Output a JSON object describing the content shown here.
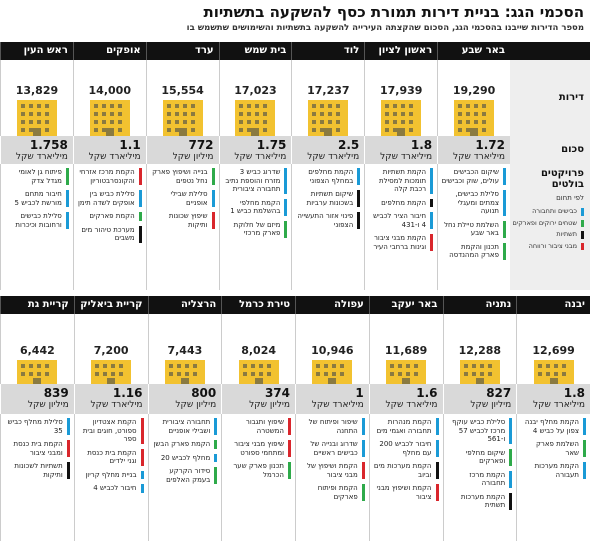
{
  "header": {
    "title": "הסכמי הגג: בניית דירות תמורת כסף להשקעה בתשתיות",
    "subtitle": "מספר הדירות שייבנו בהסכמי הגג, הסכום שהקצתה העירייה להשקעה בתשתיות והשימושים שתשמש בו"
  },
  "row_labels": {
    "units": "דירות",
    "amount": "סכום",
    "projects": "פרויקטים בולטים",
    "projects_note": "לפי תחום"
  },
  "legend": [
    {
      "label": "כבישים ותחבורה",
      "color": "#1a9ad6"
    },
    {
      "label": "שטחים ירוקים ופארקים",
      "color": "#2eaa4a"
    },
    {
      "label": "תשתיות",
      "color": "#111111"
    },
    {
      "label": "מבני ציבור ורווחה",
      "color": "#d9262c"
    }
  ],
  "top": [
    {
      "city": "באר שבע",
      "units": "19,290",
      "amount": "1.72",
      "unit": "מיליארד שקל",
      "projects": [
        {
          "text": "שיקום הכבישים עולים, שוק וכבישים",
          "category": 0
        },
        {
          "text": "סלילת כבישים, צמתים ומעגלי תנועה",
          "category": 0
        },
        {
          "text": "השלמת טיילת נחל באר שבע",
          "category": 1
        },
        {
          "text": "תכנון והקמת פארק המהנדסה",
          "category": 1
        }
      ]
    },
    {
      "city": "ראשון לציון",
      "units": "17,939",
      "amount": "1.8",
      "unit": "מיליארד שקל",
      "projects": [
        {
          "text": "הקמת תשתיות תומכות למסילת רכבת קלה",
          "category": 0
        },
        {
          "text": "הקמת מחלפים",
          "category": 2
        },
        {
          "text": "חיבור הציר לכביש 4 ו-431",
          "category": 0
        },
        {
          "text": "הקמת מבני ציבור וגינות ברחבי העיר",
          "category": 3
        }
      ]
    },
    {
      "city": "לוד",
      "units": "17,237",
      "amount": "2.5",
      "unit": "מיליארד שקל",
      "projects": [
        {
          "text": "הקמת מחלפים במחלף הצפוני",
          "category": 0
        },
        {
          "text": "שיקום תשתיות בשכונות ערביות",
          "category": 2
        },
        {
          "text": "פינוי אזור התעשייה הצפוני",
          "category": 2
        }
      ]
    },
    {
      "city": "בית שמש",
      "units": "17,023",
      "amount": "1.75",
      "unit": "מיליארד שקל",
      "projects": [
        {
          "text": "שדרוג כביש 3 מזרח והוספת נתיב תחבורה ציבורית",
          "category": 0
        },
        {
          "text": "הקמת מחלפי בהשלמת כביש 1",
          "category": 0
        },
        {
          "text": "מיזם של חלוקת פארק מרכזי",
          "category": 1
        }
      ]
    },
    {
      "city": "ערד",
      "units": "15,554",
      "amount": "772",
      "unit": "מיליון שקל",
      "projects": [
        {
          "text": "בנייה ושיפוץ פארק נחל נטפים",
          "category": 1
        },
        {
          "text": "סלילת שבילי אופניים",
          "category": 0
        },
        {
          "text": "שיפוץ שכונות ותיקות",
          "category": 3
        }
      ]
    },
    {
      "city": "אופקים",
      "units": "14,000",
      "amount": "1.1",
      "unit": "מיליארד שקל",
      "projects": [
        {
          "text": "הקמת מרכז אזרחי והקונסרבטוריון",
          "category": 3
        },
        {
          "text": "סלילת כביש בין אופקים לשדה תימן",
          "category": 0
        },
        {
          "text": "הקמת פארקים",
          "category": 1
        },
        {
          "text": "מערכת טיהור מים משבים",
          "category": 2
        }
      ]
    },
    {
      "city": "ראש העין",
      "units": "13,829",
      "amount": "1.758",
      "unit": "מיליארד שקל",
      "projects": [
        {
          "text": "פיתוח גן לאומי מגדל צדק",
          "category": 1
        },
        {
          "text": "חיבור מתחם מורשת לכביש 5",
          "category": 0
        },
        {
          "text": "סלילת כבישים ורחובות וכיכרות",
          "category": 0
        }
      ]
    }
  ],
  "bottom": [
    {
      "city": "יבנה",
      "units": "12,699",
      "amount": "1.8",
      "unit": "מיליארד שקל",
      "projects": [
        {
          "text": "הקמת מחלף יבנה צפון על כביש 4",
          "category": 0
        },
        {
          "text": "השלמת פארק שאר",
          "category": 1
        },
        {
          "text": "הקמת מערכות תעבורה",
          "category": 0
        }
      ]
    },
    {
      "city": "נתניה",
      "units": "12,288",
      "amount": "827",
      "unit": "מיליון שקל",
      "projects": [
        {
          "text": "סלילת כביש עוקף מרכז לכביש 57 ו-561",
          "category": 0
        },
        {
          "text": "שיקום מחלפי ופארקים",
          "category": 1
        },
        {
          "text": "הקמת מרכז תחבורה",
          "category": 0
        },
        {
          "text": "הקמת מערכות תשתית",
          "category": 2
        }
      ]
    },
    {
      "city": "באר יעקב",
      "units": "11,689",
      "amount": "1.6",
      "unit": "מיליארד שקל",
      "projects": [
        {
          "text": "הקמת מנהרות תחבורה ואגמי מים",
          "category": 0
        },
        {
          "text": "חיבור לכביש 200 עם מחלף",
          "category": 0
        },
        {
          "text": "הקמת מערכות מים וביוב",
          "category": 2
        },
        {
          "text": "הקמת ושיפוץ מבני ציבור",
          "category": 3
        }
      ]
    },
    {
      "city": "עפולה",
      "units": "10,946",
      "amount": "1",
      "unit": "מיליארד שקל",
      "projects": [
        {
          "text": "שיפור ופיתוח של התחנה",
          "category": 0
        },
        {
          "text": "שדרוג ובנייה של כבישים ראשיים",
          "category": 0
        },
        {
          "text": "הקמת ושיפוץ של מבני ציבור",
          "category": 3
        },
        {
          "text": "הקמת ופיתוח פארקים",
          "category": 1
        }
      ]
    },
    {
      "city": "טירת כרמל",
      "units": "8,024",
      "amount": "374",
      "unit": "מיליון שקל",
      "projects": [
        {
          "text": "שיפוץ ותגבור המשטרה",
          "category": 3
        },
        {
          "text": "שיפוץ מבני ציבור ומתחמי ספורט",
          "category": 3
        },
        {
          "text": "תכנון פארק שער הכרמל",
          "category": 1
        }
      ]
    },
    {
      "city": "הרצליה",
      "units": "7,443",
      "amount": "800",
      "unit": "מיליון שקל",
      "projects": [
        {
          "text": "תחבורה ציבורית ושבילי אופניים",
          "category": 0
        },
        {
          "text": "הקמת פארק הבשן",
          "category": 1
        },
        {
          "text": "מחלף לכביש 20",
          "category": 0
        },
        {
          "text": "סידור הקרקע בעמק האלפים",
          "category": 1
        }
      ]
    },
    {
      "city": "קריית ביאליק",
      "units": "7,200",
      "amount": "1.16",
      "unit": "מיליארד שקל",
      "projects": [
        {
          "text": "הקמת אצטדיון ספורט, חוגים ובית ספר",
          "category": 3
        },
        {
          "text": "הקמת בית כנסת וגני ילדים",
          "category": 3
        },
        {
          "text": "בניית מחלף קריון",
          "category": 0
        },
        {
          "text": "חיבור לכביש 4",
          "category": 0
        }
      ]
    },
    {
      "city": "קריית גת",
      "units": "6,442",
      "amount": "839",
      "unit": "מיליון שקל",
      "projects": [
        {
          "text": "סלילת מחלף כביש 35",
          "category": 0
        },
        {
          "text": "הקמת בית כנסת ומבני ציבור",
          "category": 3
        },
        {
          "text": "תשתיות לשכונות ותיקות",
          "category": 2
        }
      ]
    }
  ]
}
